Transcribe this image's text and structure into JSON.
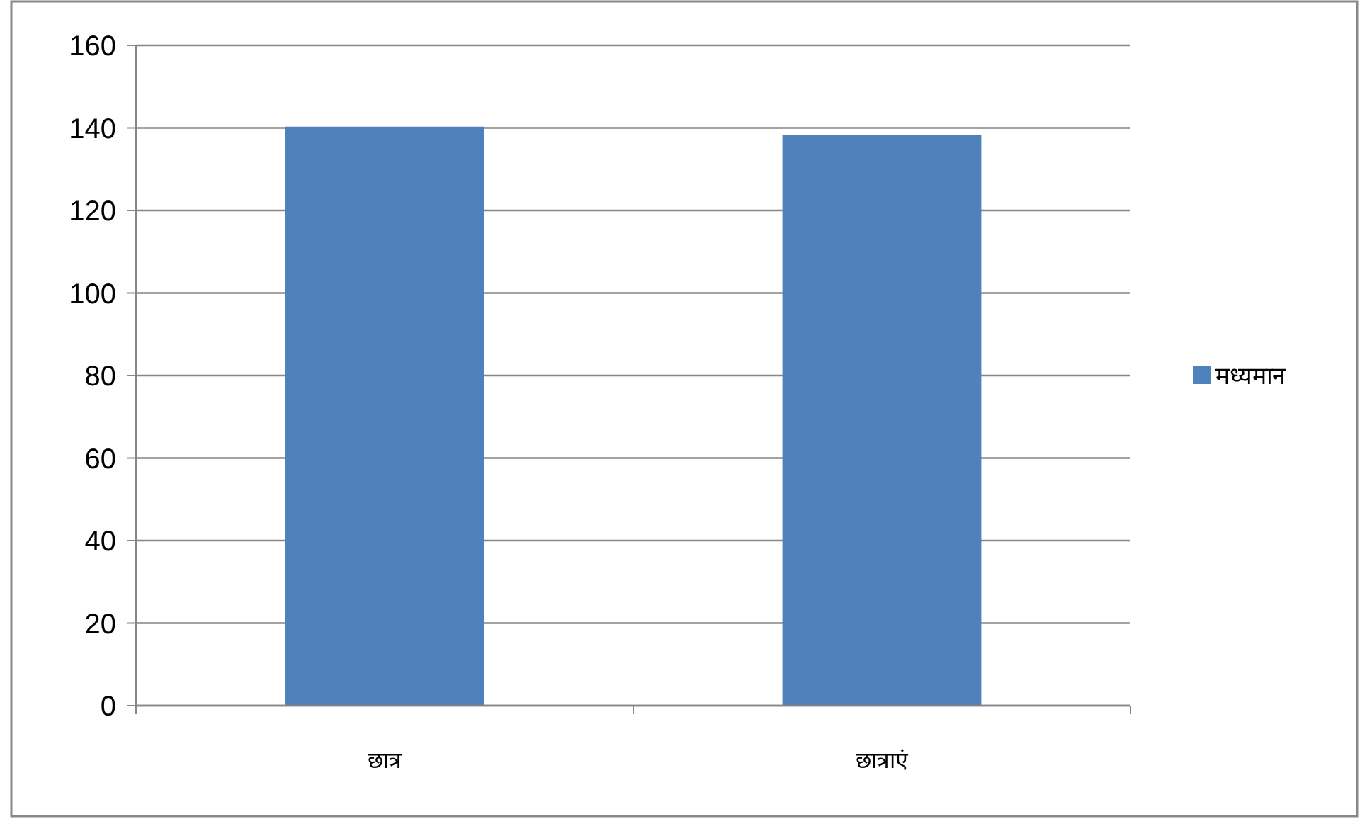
{
  "chart_data": {
    "type": "bar",
    "categories": [
      "छात्र",
      "छात्राएं"
    ],
    "series": [
      {
        "name": "मध्यमान",
        "color": "#4f81bd",
        "values": [
          140.3,
          138.3
        ]
      }
    ],
    "ylim": [
      0,
      160
    ],
    "yticks": [
      0,
      20,
      40,
      60,
      80,
      100,
      120,
      140,
      160
    ],
    "grid": "y",
    "legend": "right"
  }
}
